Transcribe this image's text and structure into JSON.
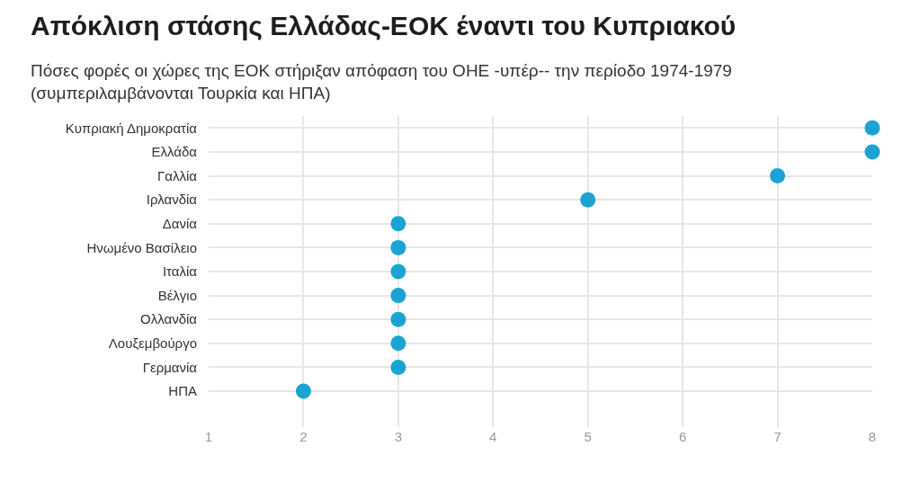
{
  "chart_data": {
    "type": "scatter",
    "orientation": "horizontal",
    "title": "Απόκλιση στάσης Ελλάδας-ΕΟΚ έναντι του Κυπριακού",
    "subtitle": "Πόσες φορές οι χώρες της ΕΟΚ στήριξαν απόφαση του ΟΗΕ -υπέρ-- την περίοδο 1974-1979\n(συμπεριλαμβάνονται Τουρκία και ΗΠΑ)",
    "categories": [
      "Κυπριακή Δημοκρατία",
      "Ελλάδα",
      "Γαλλία",
      "Ιρλανδία",
      "Δανία",
      "Ηνωμένο Βασίλειο",
      "Ιταλία",
      "Βέλγιο",
      "Ολλανδία",
      "Λουξεμβούργο",
      "Γερμανία",
      "ΗΠΑ",
      null
    ],
    "values": [
      8,
      8,
      7,
      5,
      3,
      3,
      3,
      3,
      3,
      3,
      3,
      2,
      null
    ],
    "color": "#1ba3d4",
    "marker": "circle",
    "xlim": [
      1,
      8
    ],
    "xticks": [
      1,
      2,
      3,
      4,
      5,
      6,
      7,
      8
    ],
    "grid": true
  }
}
